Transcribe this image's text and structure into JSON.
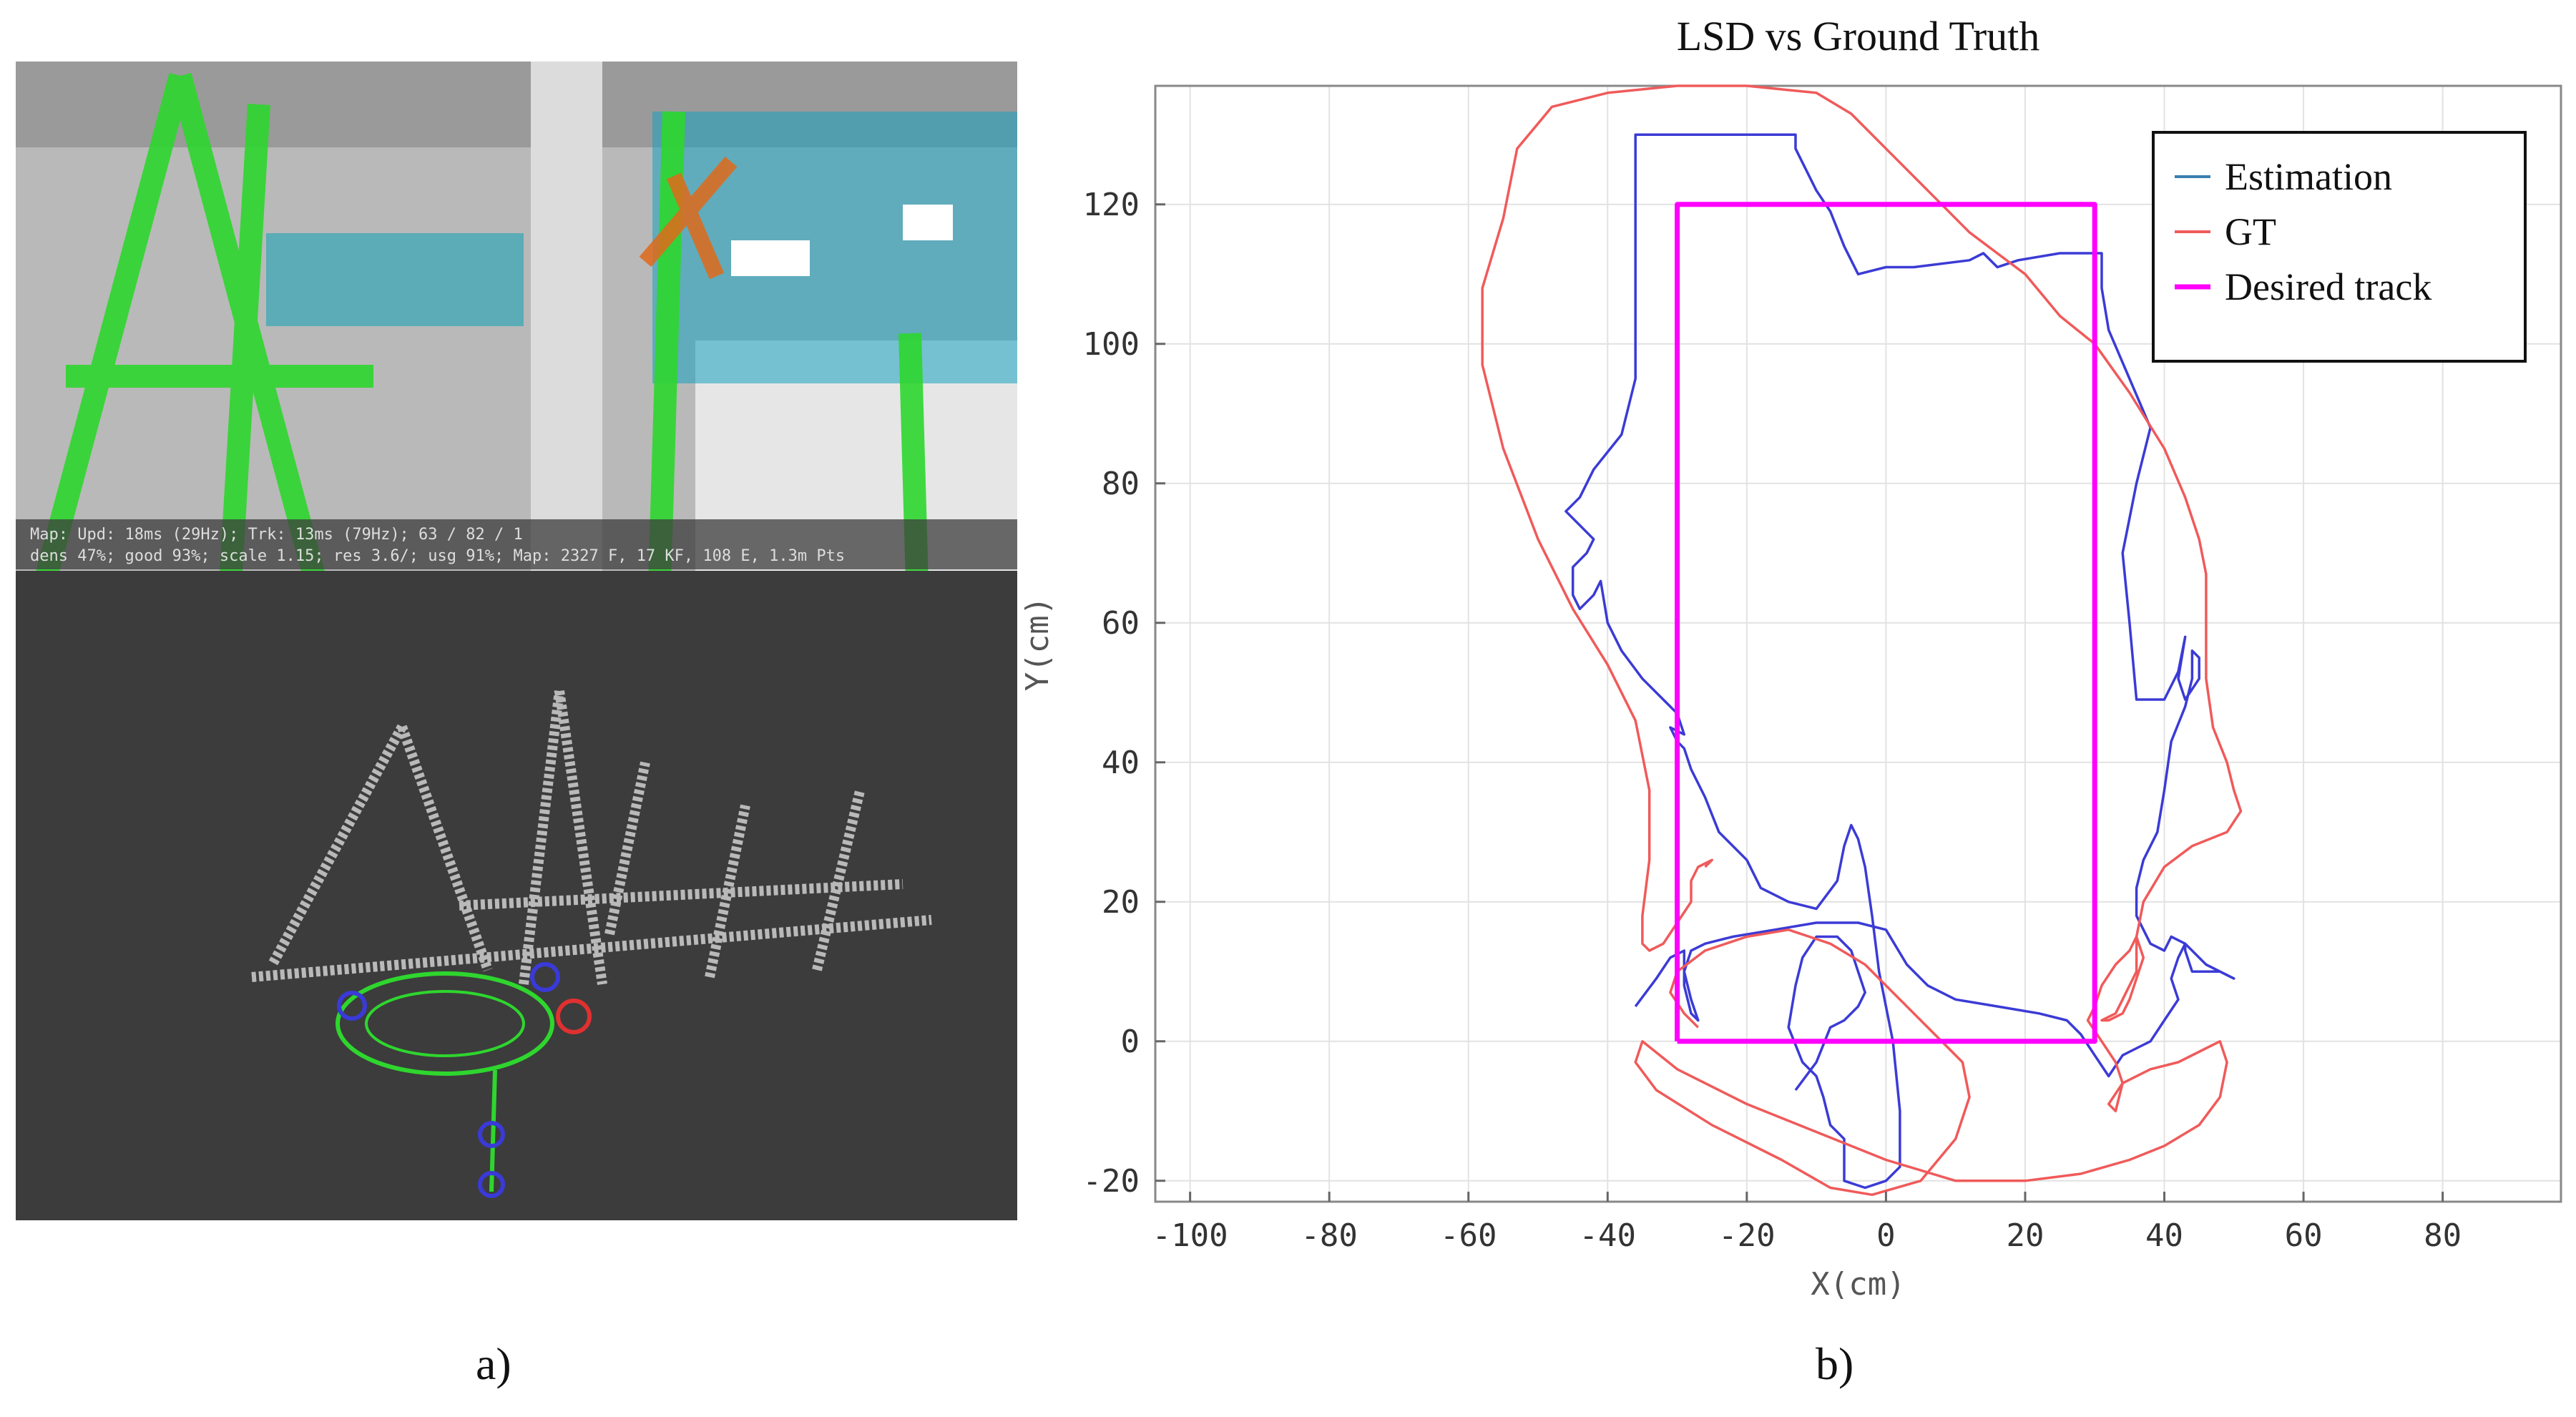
{
  "panel_a": {
    "status_line_1": "Map: Upd: 18ms (29Hz); Trk: 13ms (79Hz); 63 / 82 / 1",
    "status_line_2": "dens 47%; good 93%; scale 1.15; res 3.6/; usg 91%; Map: 2327 F, 17 KF, 108 E, 1.3m Pts"
  },
  "captions": {
    "a": "a)",
    "b": "b)"
  },
  "colors": {
    "estimation": "#3b3bd6",
    "gt": "#f05a5a",
    "desired": "#ff00ff",
    "legend_estimation": "#3a7fb0"
  },
  "chart_data": {
    "type": "line",
    "title": "LSD vs Ground Truth",
    "xlabel": "X(cm)",
    "ylabel": "Y(cm)",
    "xlim": [
      -105,
      97
    ],
    "ylim": [
      -23,
      137
    ],
    "xticks": [
      -100,
      -80,
      -60,
      -40,
      -20,
      0,
      20,
      40,
      60,
      80
    ],
    "yticks": [
      -20,
      0,
      20,
      40,
      60,
      80,
      100,
      120
    ],
    "grid": true,
    "legend_position": "top-right",
    "series": [
      {
        "name": "Estimation",
        "color": "#3b3bd6",
        "points": [
          [
            -36,
            5
          ],
          [
            -33,
            9
          ],
          [
            -31,
            12
          ],
          [
            -29,
            13
          ],
          [
            -29,
            8
          ],
          [
            -28,
            4
          ],
          [
            -27,
            3
          ],
          [
            -28,
            6
          ],
          [
            -29,
            10
          ],
          [
            -28,
            13
          ],
          [
            -26,
            14
          ],
          [
            -22,
            15
          ],
          [
            -16,
            16
          ],
          [
            -10,
            17
          ],
          [
            -4,
            17
          ],
          [
            0,
            16
          ],
          [
            3,
            11
          ],
          [
            6,
            8
          ],
          [
            10,
            6
          ],
          [
            16,
            5
          ],
          [
            22,
            4
          ],
          [
            26,
            3
          ],
          [
            28,
            1
          ],
          [
            30,
            -2
          ],
          [
            32,
            -5
          ],
          [
            34,
            -2
          ],
          [
            36,
            -1
          ],
          [
            38,
            0
          ],
          [
            40,
            3
          ],
          [
            42,
            6
          ],
          [
            41,
            9
          ],
          [
            42,
            12
          ],
          [
            43,
            14
          ],
          [
            43,
            13
          ],
          [
            44,
            10
          ],
          [
            46,
            10
          ],
          [
            48,
            10
          ],
          [
            50,
            9
          ],
          [
            46,
            11
          ],
          [
            43,
            14
          ],
          [
            41,
            15
          ],
          [
            40,
            13
          ],
          [
            38,
            14
          ],
          [
            36,
            18
          ],
          [
            36,
            22
          ],
          [
            37,
            26
          ],
          [
            39,
            30
          ],
          [
            40,
            36
          ],
          [
            41,
            43
          ],
          [
            43,
            48
          ],
          [
            44,
            52
          ],
          [
            44,
            56
          ],
          [
            45,
            55
          ],
          [
            45,
            52
          ],
          [
            43,
            49
          ],
          [
            42,
            52
          ],
          [
            43,
            58
          ],
          [
            42,
            53
          ],
          [
            40,
            49
          ],
          [
            36,
            49
          ],
          [
            35,
            60
          ],
          [
            34,
            70
          ],
          [
            36,
            80
          ],
          [
            38,
            88
          ],
          [
            35,
            95
          ],
          [
            32,
            102
          ],
          [
            31,
            108
          ],
          [
            31,
            113
          ],
          [
            25,
            113
          ],
          [
            19,
            112
          ],
          [
            16,
            111
          ],
          [
            14,
            113
          ],
          [
            12,
            112
          ],
          [
            4,
            111
          ],
          [
            0,
            111
          ],
          [
            -4,
            110
          ],
          [
            -6,
            114
          ],
          [
            -8,
            119
          ],
          [
            -10,
            122
          ],
          [
            -12,
            126
          ],
          [
            -13,
            128
          ],
          [
            -13,
            130
          ],
          [
            -19,
            130
          ],
          [
            -25,
            130
          ],
          [
            -32,
            130
          ],
          [
            -36,
            130
          ],
          [
            -36,
            123
          ],
          [
            -36,
            115
          ],
          [
            -36,
            105
          ],
          [
            -36,
            95
          ],
          [
            -38,
            87
          ],
          [
            -42,
            82
          ],
          [
            -44,
            78
          ],
          [
            -46,
            76
          ],
          [
            -44,
            74
          ],
          [
            -42,
            72
          ],
          [
            -43,
            70
          ],
          [
            -45,
            68
          ],
          [
            -45,
            64
          ],
          [
            -44,
            62
          ],
          [
            -42,
            64
          ],
          [
            -41,
            66
          ],
          [
            -40,
            60
          ],
          [
            -38,
            56
          ],
          [
            -35,
            52
          ],
          [
            -32,
            49
          ],
          [
            -30,
            47
          ],
          [
            -29,
            44
          ],
          [
            -31,
            45
          ],
          [
            -30,
            43
          ],
          [
            -29,
            42
          ],
          [
            -28,
            39
          ],
          [
            -26,
            35
          ],
          [
            -24,
            30
          ],
          [
            -20,
            26
          ],
          [
            -18,
            22
          ],
          [
            -14,
            20
          ],
          [
            -10,
            19
          ],
          [
            -7,
            23
          ],
          [
            -6,
            28
          ],
          [
            -5,
            31
          ],
          [
            -4,
            29
          ],
          [
            -3,
            25
          ],
          [
            -2,
            18
          ],
          [
            -1,
            10
          ],
          [
            1,
            0
          ],
          [
            2,
            -10
          ],
          [
            2,
            -18
          ],
          [
            0,
            -20
          ],
          [
            -3,
            -21
          ],
          [
            -6,
            -20
          ],
          [
            -6,
            -17
          ],
          [
            -6,
            -14
          ],
          [
            -8,
            -12
          ],
          [
            -9,
            -8
          ],
          [
            -10,
            -5
          ],
          [
            -12,
            -3
          ],
          [
            -14,
            2
          ],
          [
            -13,
            8
          ],
          [
            -12,
            12
          ],
          [
            -10,
            15
          ],
          [
            -7,
            15
          ],
          [
            -5,
            13
          ],
          [
            -4,
            10
          ],
          [
            -3,
            7
          ],
          [
            -4,
            5
          ],
          [
            -6,
            3
          ],
          [
            -8,
            2
          ],
          [
            -10,
            -3
          ],
          [
            -13,
            -7
          ]
        ]
      },
      {
        "name": "GT",
        "color": "#f05a5a",
        "points": [
          [
            -26,
            25
          ],
          [
            -25,
            26
          ],
          [
            -27,
            25
          ],
          [
            -28,
            23
          ],
          [
            -28,
            20
          ],
          [
            -30,
            17
          ],
          [
            -32,
            14
          ],
          [
            -34,
            13
          ],
          [
            -35,
            14
          ],
          [
            -35,
            18
          ],
          [
            -34,
            26
          ],
          [
            -34,
            36
          ],
          [
            -36,
            46
          ],
          [
            -40,
            54
          ],
          [
            -45,
            62
          ],
          [
            -50,
            72
          ],
          [
            -55,
            85
          ],
          [
            -58,
            97
          ],
          [
            -58,
            108
          ],
          [
            -55,
            118
          ],
          [
            -53,
            128
          ],
          [
            -48,
            134
          ],
          [
            -40,
            136
          ],
          [
            -30,
            137
          ],
          [
            -20,
            137
          ],
          [
            -10,
            136
          ],
          [
            -5,
            133
          ],
          [
            0,
            128
          ],
          [
            6,
            122
          ],
          [
            12,
            116
          ],
          [
            20,
            110
          ],
          [
            25,
            104
          ],
          [
            30,
            100
          ],
          [
            35,
            93
          ],
          [
            40,
            85
          ],
          [
            43,
            78
          ],
          [
            45,
            72
          ],
          [
            46,
            67
          ],
          [
            46,
            60
          ],
          [
            46,
            52
          ],
          [
            47,
            45
          ],
          [
            49,
            40
          ],
          [
            50,
            36
          ],
          [
            51,
            33
          ],
          [
            49,
            30
          ],
          [
            44,
            28
          ],
          [
            40,
            25
          ],
          [
            37,
            20
          ],
          [
            36,
            15
          ],
          [
            36,
            10
          ],
          [
            35,
            8
          ],
          [
            34,
            6
          ],
          [
            33,
            4
          ],
          [
            31,
            3
          ],
          [
            32,
            3
          ],
          [
            34,
            4
          ],
          [
            35,
            6
          ],
          [
            36,
            9
          ],
          [
            37,
            12
          ],
          [
            36,
            15
          ],
          [
            35,
            13
          ],
          [
            33,
            11
          ],
          [
            31,
            8
          ],
          [
            30,
            5
          ],
          [
            29,
            3
          ],
          [
            31,
            0
          ],
          [
            33,
            -3
          ],
          [
            34,
            -6
          ],
          [
            33,
            -10
          ],
          [
            32,
            -9
          ],
          [
            34,
            -6
          ],
          [
            38,
            -4
          ],
          [
            42,
            -3
          ],
          [
            46,
            -1
          ],
          [
            48,
            0
          ],
          [
            49,
            -3
          ],
          [
            48,
            -8
          ],
          [
            45,
            -12
          ],
          [
            40,
            -15
          ],
          [
            35,
            -17
          ],
          [
            28,
            -19
          ],
          [
            20,
            -20
          ],
          [
            10,
            -20
          ],
          [
            0,
            -17
          ],
          [
            -10,
            -13
          ],
          [
            -20,
            -9
          ],
          [
            -30,
            -4
          ],
          [
            -35,
            0
          ],
          [
            -36,
            -3
          ],
          [
            -33,
            -7
          ],
          [
            -25,
            -12
          ],
          [
            -15,
            -17
          ],
          [
            -8,
            -21
          ],
          [
            -2,
            -22
          ],
          [
            5,
            -20
          ],
          [
            10,
            -14
          ],
          [
            12,
            -8
          ],
          [
            11,
            -3
          ],
          [
            7,
            1
          ],
          [
            2,
            6
          ],
          [
            -3,
            11
          ],
          [
            -8,
            14
          ],
          [
            -14,
            16
          ],
          [
            -20,
            15
          ],
          [
            -26,
            13
          ],
          [
            -30,
            10
          ],
          [
            -31,
            7
          ],
          [
            -29,
            4
          ],
          [
            -27,
            2
          ]
        ]
      },
      {
        "name": "Desired track",
        "color": "#ff00ff",
        "points": [
          [
            -30,
            0
          ],
          [
            -30,
            120
          ],
          [
            30,
            120
          ],
          [
            30,
            0
          ],
          [
            -30,
            0
          ]
        ]
      }
    ]
  }
}
